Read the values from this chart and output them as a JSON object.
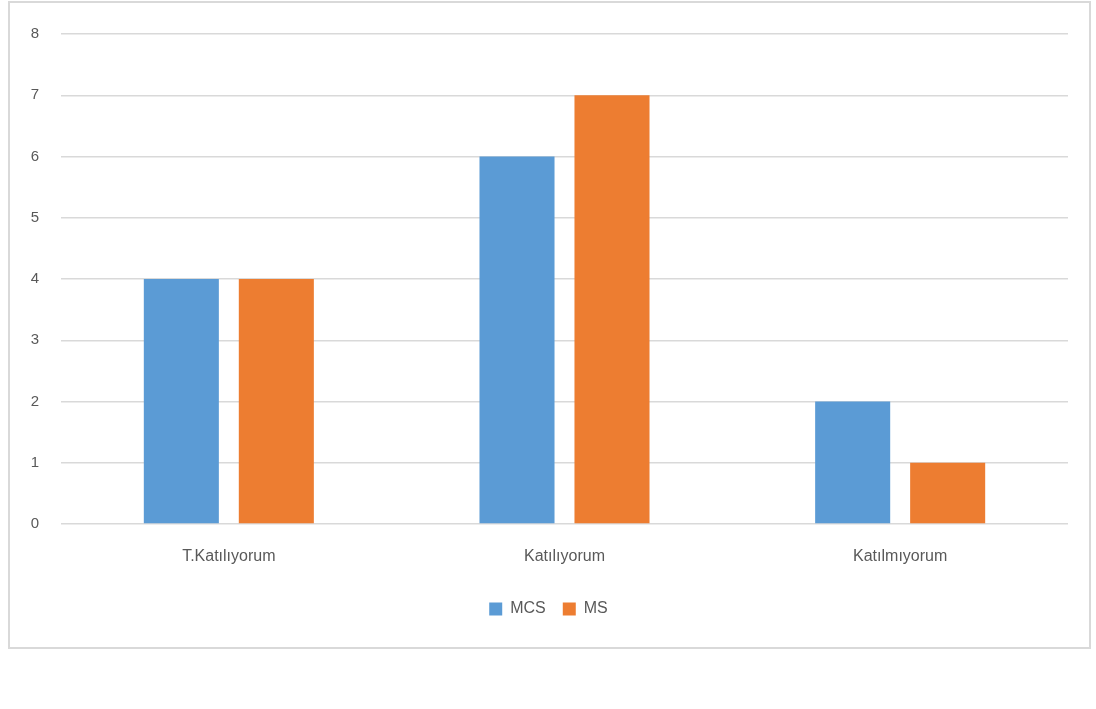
{
  "chart_data": {
    "type": "bar",
    "categories": [
      "T.Katılıyorum",
      "Katılıyorum",
      "Katılmıyorum"
    ],
    "series": [
      {
        "name": "MCS",
        "color": "#5b9bd5",
        "values": [
          4,
          6,
          2
        ]
      },
      {
        "name": "MS",
        "color": "#ed7d31",
        "values": [
          4,
          7,
          1
        ]
      }
    ],
    "ylim": [
      0,
      8
    ],
    "yticks": [
      0,
      1,
      2,
      3,
      4,
      5,
      6,
      7,
      8
    ],
    "grid": "y",
    "legend": "bottom"
  }
}
